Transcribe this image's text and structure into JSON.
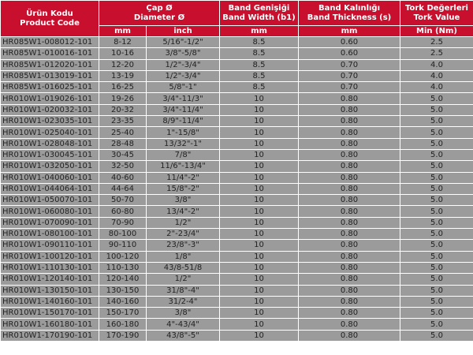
{
  "header": {
    "product_code": {
      "tr": "Ürün Kodu",
      "en": "Product Code"
    },
    "diameter": {
      "tr": "Çap Ø",
      "en": "Diameter Ø",
      "unit_mm": "mm",
      "unit_inch": "inch"
    },
    "band_width": {
      "tr": "Band Genişiği",
      "en": "Band Width (b1)",
      "unit": "mm"
    },
    "band_thickness": {
      "tr": "Band Kalınlığı",
      "en": "Band Thickness (s)",
      "unit": "mm"
    },
    "torque": {
      "tr": "Tork Değerleri",
      "en": "Tork Value",
      "unit": "Min (Nm)"
    }
  },
  "colors": {
    "header_bg": "#c8102e",
    "row_bg": "#9b9b9b"
  },
  "rows": [
    [
      "HR085W1-008012-101",
      "8-12",
      "5/16\"-1/2\"",
      "8.5",
      "0.60",
      "2.5"
    ],
    [
      "HR085W1-010016-101",
      "10-16",
      "3/8\"-5/8\"",
      "8.5",
      "0.60",
      "2.5"
    ],
    [
      "HR085W1-012020-101",
      "12-20",
      "1/2\"-3/4\"",
      "8.5",
      "0.70",
      "4.0"
    ],
    [
      "HR085W1-013019-101",
      "13-19",
      "1/2\"-3/4\"",
      "8.5",
      "0.70",
      "4.0"
    ],
    [
      "HR085W1-016025-101",
      "16-25",
      "5/8\"-1\"",
      "8.5",
      "0.70",
      "4.0"
    ],
    [
      "HR010W1-019026-101",
      "19-26",
      "3/4\"-11/3\"",
      "10",
      "0.80",
      "5.0"
    ],
    [
      "HR010W1-020032-101",
      "20-32",
      "3/4\"-11/4\"",
      "10",
      "0.80",
      "5.0"
    ],
    [
      "HR010W1-023035-101",
      "23-35",
      "8/9\"-11/4\"",
      "10",
      "0.80",
      "5.0"
    ],
    [
      "HR010W1-025040-101",
      "25-40",
      "1\"-15/8\"",
      "10",
      "0.80",
      "5.0"
    ],
    [
      "HR010W1-028048-101",
      "28-48",
      "13/32\"-1\"",
      "10",
      "0.80",
      "5.0"
    ],
    [
      "HR010W1-030045-101",
      "30-45",
      "7/8\"",
      "10",
      "0.80",
      "5.0"
    ],
    [
      "HR010W1-032050-101",
      "32-50",
      "11/6\"-13/4\"",
      "10",
      "0.80",
      "5.0"
    ],
    [
      "HR010W1-040060-101",
      "40-60",
      "11/4\"-2\"",
      "10",
      "0.80",
      "5.0"
    ],
    [
      "HR010W1-044064-101",
      "44-64",
      "15/8\"-2\"",
      "10",
      "0.80",
      "5.0"
    ],
    [
      "HR010W1-050070-101",
      "50-70",
      "3/8\"",
      "10",
      "0.80",
      "5.0"
    ],
    [
      "HR010W1-060080-101",
      "60-80",
      "13/4\"-2\"",
      "10",
      "0.80",
      "5.0"
    ],
    [
      "HR010W1-070090-101",
      "70-90",
      "1/2\"",
      "10",
      "0.80",
      "5.0"
    ],
    [
      "HR010W1-080100-101",
      "80-100",
      "2\"-23/4\"",
      "10",
      "0.80",
      "5.0"
    ],
    [
      "HR010W1-090110-101",
      "90-110",
      "23/8\"-3\"",
      "10",
      "0.80",
      "5.0"
    ],
    [
      "HR010W1-100120-101",
      "100-120",
      "1/8\"",
      "10",
      "0.80",
      "5.0"
    ],
    [
      "HR010W1-110130-101",
      "110-130",
      "43/8-51/8",
      "10",
      "0.80",
      "5.0"
    ],
    [
      "HR010W1-120140-101",
      "120-140",
      "1/2\"",
      "10",
      "0.80",
      "5.0"
    ],
    [
      "HR010W1-130150-101",
      "130-150",
      "31/8\"-4\"",
      "10",
      "0.80",
      "5.0"
    ],
    [
      "HR010W1-140160-101",
      "140-160",
      "31/2-4\"",
      "10",
      "0.80",
      "5.0"
    ],
    [
      "HR010W1-150170-101",
      "150-170",
      "3/8\"",
      "10",
      "0.80",
      "5.0"
    ],
    [
      "HR010W1-160180-101",
      "160-180",
      "4\"-43/4\"",
      "10",
      "0.80",
      "5.0"
    ],
    [
      "HR010W1-170190-101",
      "170-190",
      "43/8\"-5\"",
      "10",
      "0.80",
      "5.0"
    ]
  ]
}
